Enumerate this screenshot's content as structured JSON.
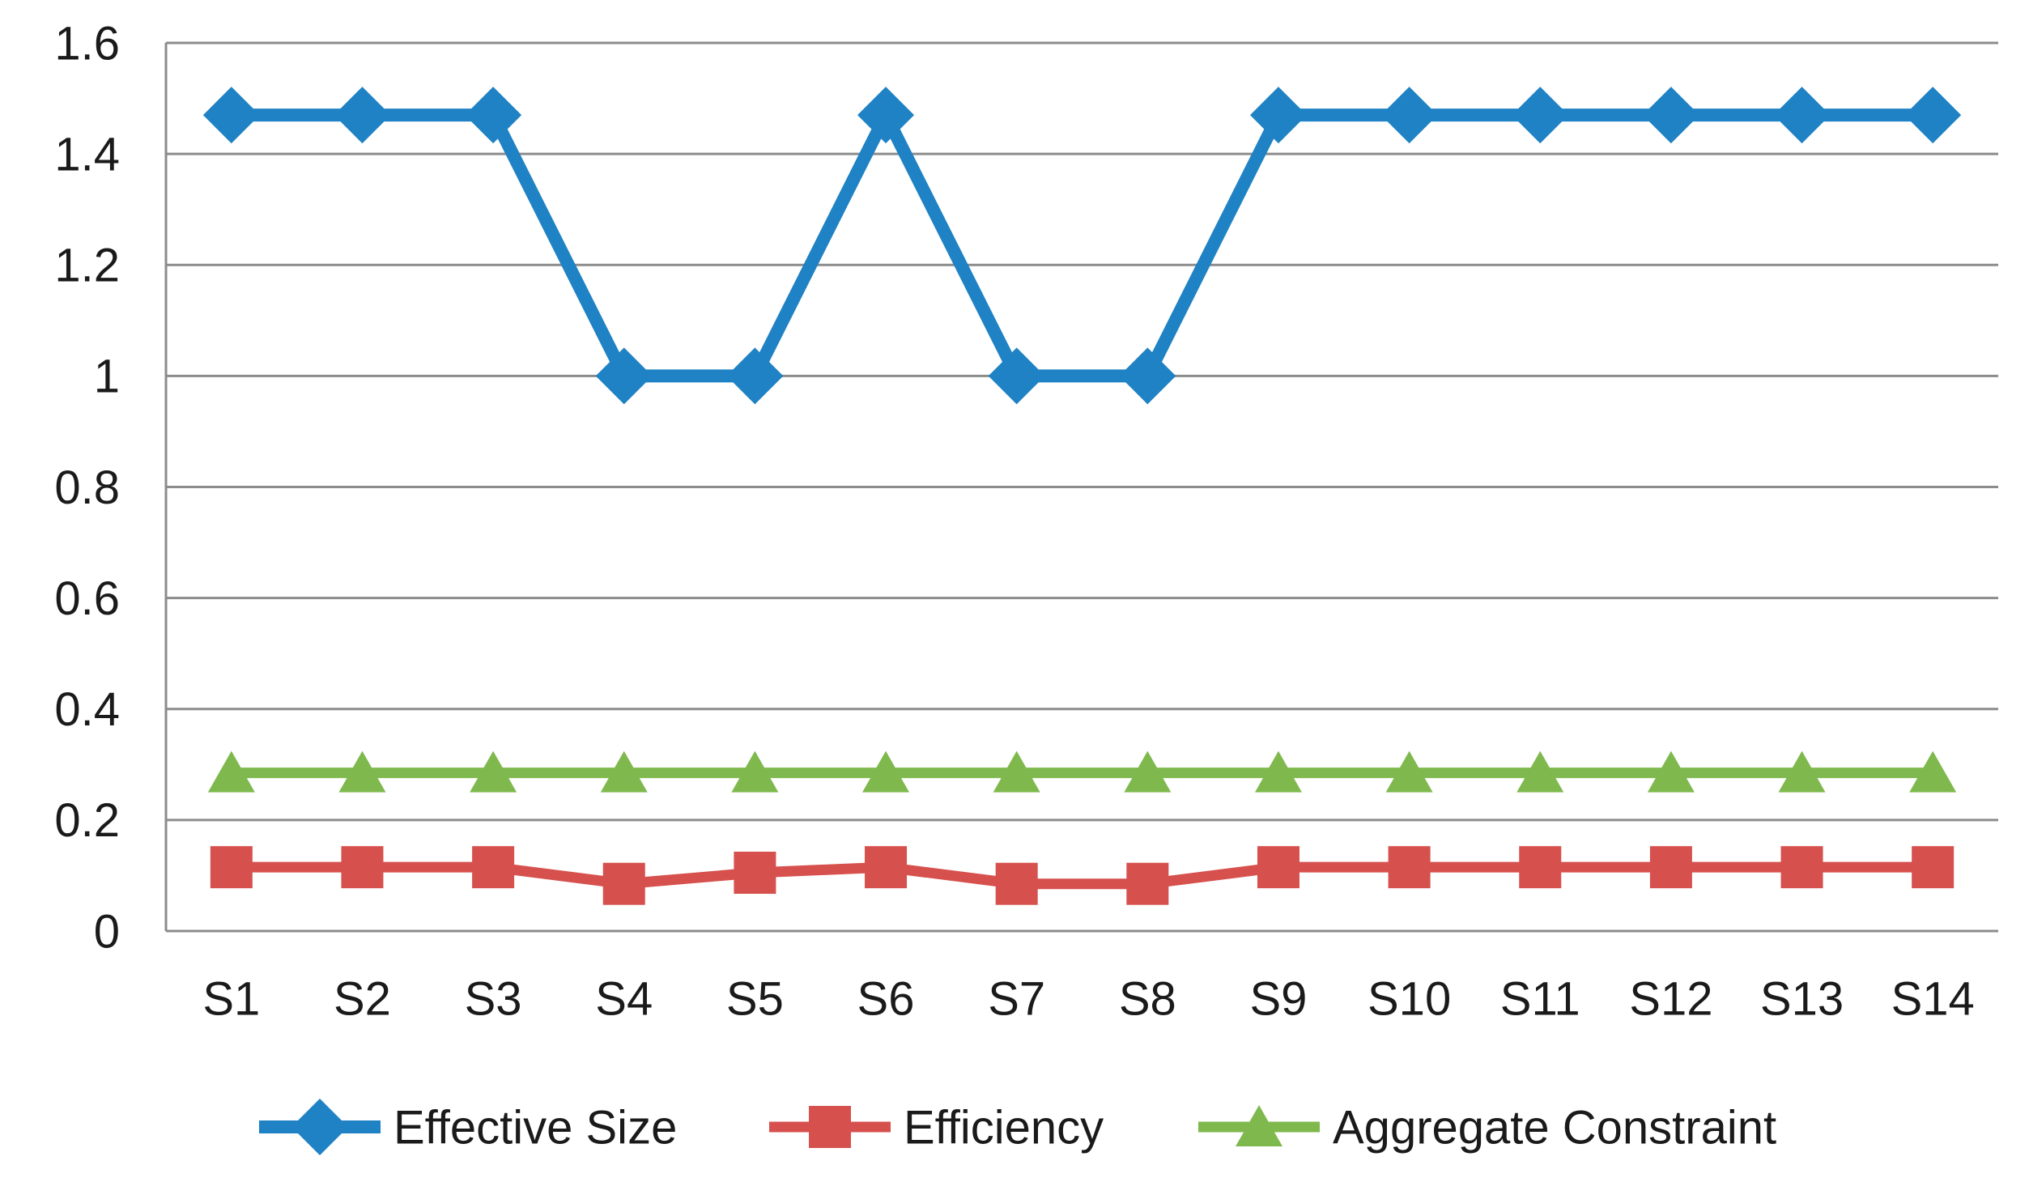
{
  "chart_data": {
    "type": "line",
    "title": "",
    "xlabel": "",
    "ylabel": "",
    "categories": [
      "S1",
      "S2",
      "S3",
      "S4",
      "S5",
      "S6",
      "S7",
      "S8",
      "S9",
      "S10",
      "S11",
      "S12",
      "S13",
      "S14"
    ],
    "series": [
      {
        "name": "Effective Size",
        "marker": "diamond",
        "color": "#1F82C4",
        "values": [
          1.47,
          1.47,
          1.47,
          1.0,
          1.0,
          1.47,
          1.0,
          1.0,
          1.47,
          1.47,
          1.47,
          1.47,
          1.47,
          1.47
        ]
      },
      {
        "name": "Efficiency",
        "marker": "square",
        "color": "#D6514E",
        "values": [
          0.115,
          0.115,
          0.115,
          0.085,
          0.105,
          0.115,
          0.085,
          0.085,
          0.115,
          0.115,
          0.115,
          0.115,
          0.115,
          0.115
        ]
      },
      {
        "name": "Aggregate Constraint",
        "marker": "triangle",
        "color": "#7FB94E",
        "values": [
          0.285,
          0.285,
          0.285,
          0.285,
          0.285,
          0.285,
          0.285,
          0.285,
          0.285,
          0.285,
          0.285,
          0.285,
          0.285,
          0.285
        ]
      }
    ],
    "ylim": [
      0,
      1.6
    ],
    "y_tick_step": 0.2,
    "y_tick_labels": [
      "0",
      "0.2",
      "0.4",
      "0.6",
      "0.8",
      "1",
      "1.2",
      "1.4",
      "1.6"
    ],
    "grid": "horizontal",
    "legend_position": "bottom",
    "colors": {
      "gridline": "#8C8C8C",
      "axis_line": "#8C8C8C",
      "text": "#1A1A1A",
      "background": "#FFFFFF"
    }
  }
}
